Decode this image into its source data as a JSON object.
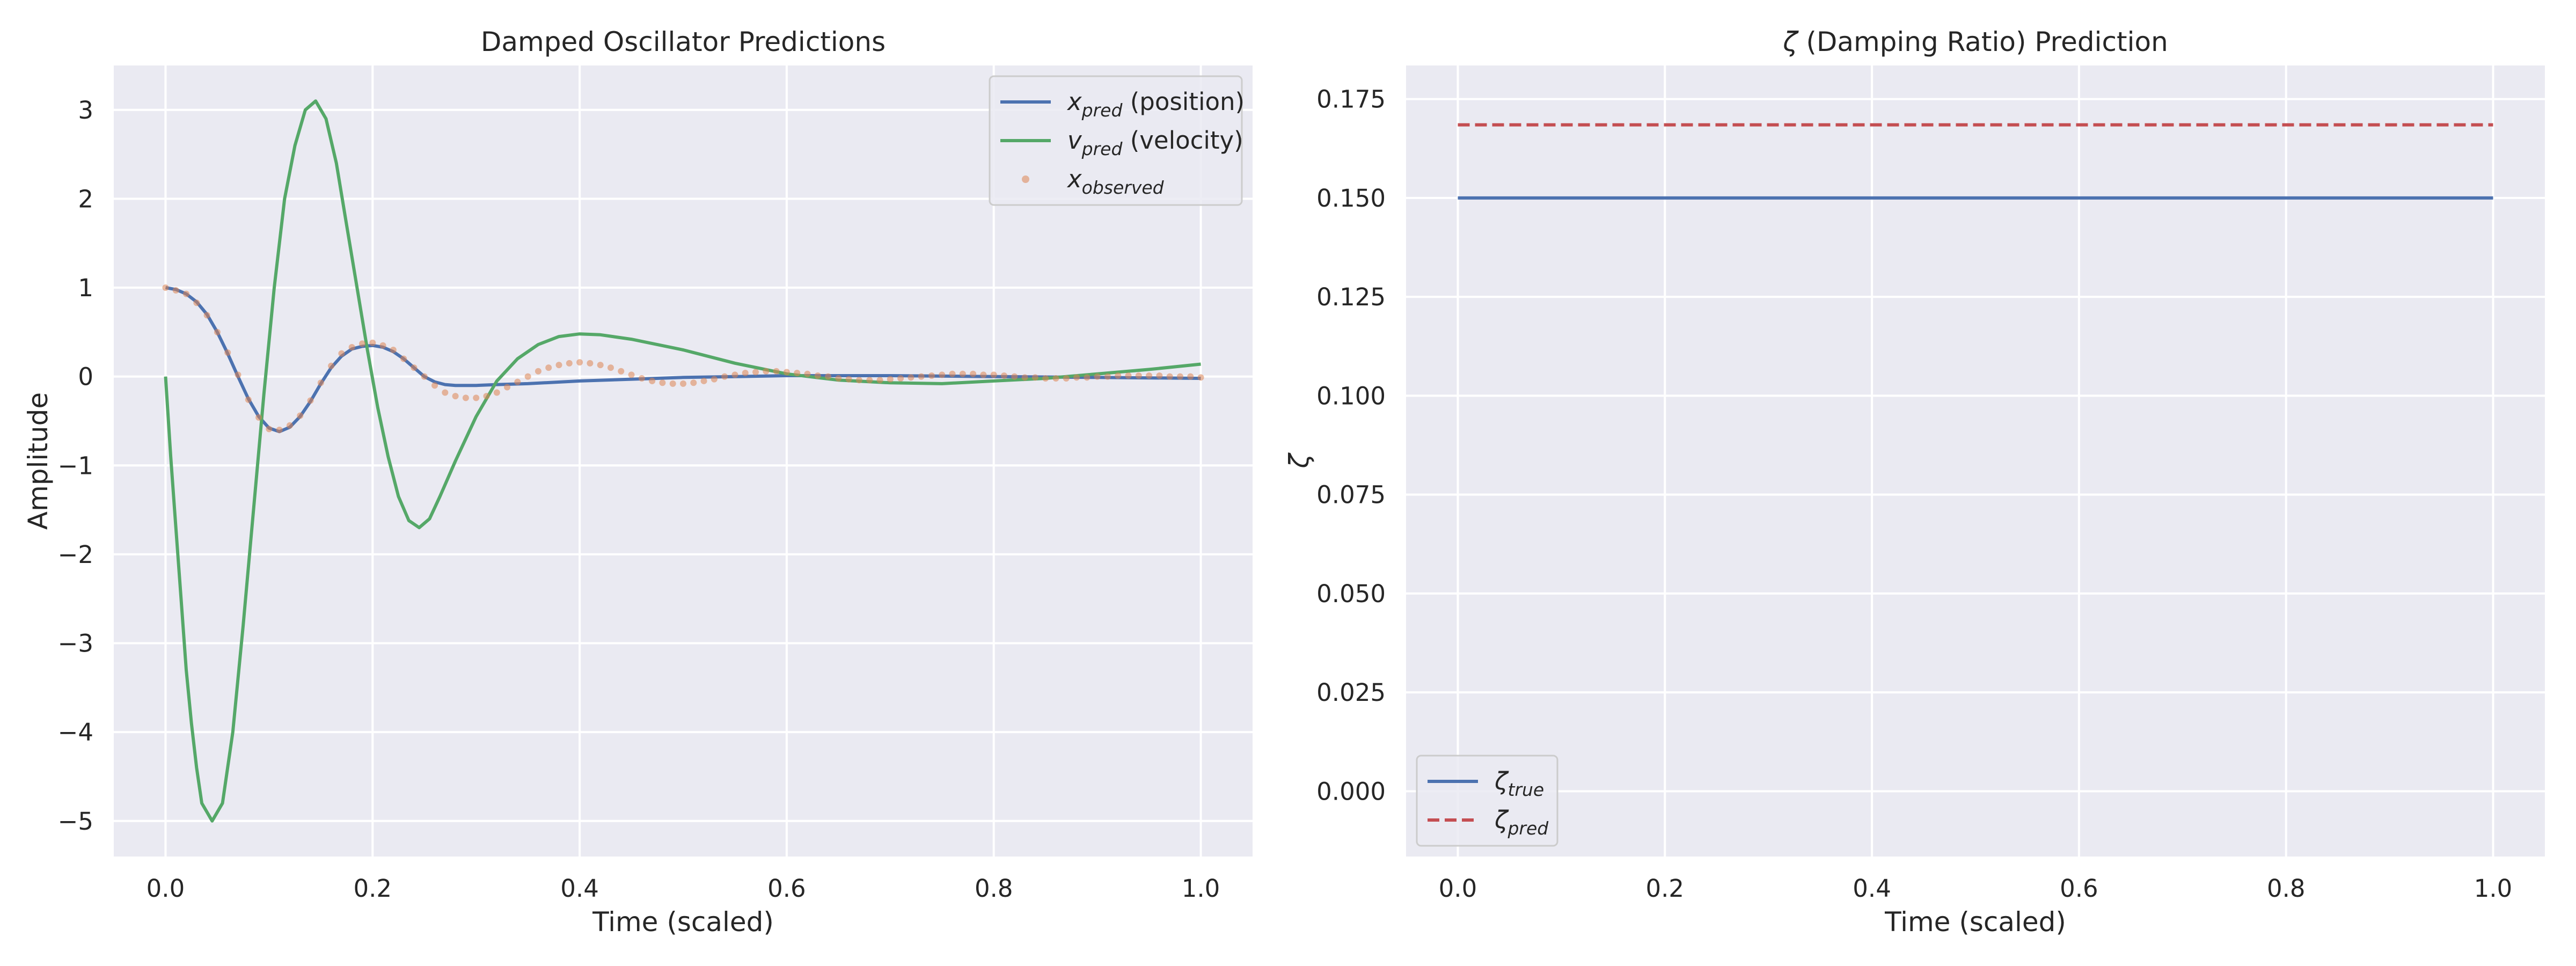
{
  "chart_data": [
    {
      "type": "line",
      "title": "Damped Oscillator Predictions",
      "xlabel": "Time (scaled)",
      "ylabel": "Amplitude",
      "xlim": [
        -0.05,
        1.05
      ],
      "ylim": [
        -5.4,
        3.5
      ],
      "xticks": [
        0.0,
        0.2,
        0.4,
        0.6,
        0.8,
        1.0
      ],
      "xtick_labels": [
        "0.0",
        "0.2",
        "0.4",
        "0.6",
        "0.8",
        "1.0"
      ],
      "yticks": [
        3,
        2,
        1,
        0,
        -1,
        -2,
        -3,
        -4,
        -5
      ],
      "ytick_labels": [
        "3",
        "2",
        "1",
        "0",
        "−1",
        "−2",
        "−3",
        "−4",
        "−5"
      ],
      "grid": true,
      "legend_position": "top-right",
      "series": [
        {
          "name": "x_pred (position)",
          "legend_main": "x",
          "legend_sub": "pred",
          "legend_suffix": " (position)",
          "kind": "line",
          "color": "#4c72b0",
          "points": [
            [
              0.0,
              1.0
            ],
            [
              0.01,
              0.98
            ],
            [
              0.02,
              0.93
            ],
            [
              0.03,
              0.84
            ],
            [
              0.04,
              0.7
            ],
            [
              0.05,
              0.5
            ],
            [
              0.06,
              0.26
            ],
            [
              0.07,
              0.0
            ],
            [
              0.08,
              -0.25
            ],
            [
              0.09,
              -0.45
            ],
            [
              0.1,
              -0.58
            ],
            [
              0.11,
              -0.62
            ],
            [
              0.12,
              -0.57
            ],
            [
              0.13,
              -0.45
            ],
            [
              0.14,
              -0.28
            ],
            [
              0.15,
              -0.08
            ],
            [
              0.16,
              0.1
            ],
            [
              0.17,
              0.23
            ],
            [
              0.18,
              0.31
            ],
            [
              0.19,
              0.34
            ],
            [
              0.2,
              0.35
            ],
            [
              0.21,
              0.33
            ],
            [
              0.22,
              0.28
            ],
            [
              0.23,
              0.2
            ],
            [
              0.24,
              0.1
            ],
            [
              0.25,
              0.0
            ],
            [
              0.26,
              -0.06
            ],
            [
              0.27,
              -0.09
            ],
            [
              0.28,
              -0.1
            ],
            [
              0.3,
              -0.1
            ],
            [
              0.32,
              -0.09
            ],
            [
              0.35,
              -0.08
            ],
            [
              0.4,
              -0.05
            ],
            [
              0.45,
              -0.03
            ],
            [
              0.5,
              -0.01
            ],
            [
              0.55,
              0.0
            ],
            [
              0.6,
              0.01
            ],
            [
              0.65,
              0.01
            ],
            [
              0.7,
              0.01
            ],
            [
              0.8,
              0.0
            ],
            [
              0.9,
              -0.01
            ],
            [
              1.0,
              -0.02
            ]
          ]
        },
        {
          "name": "v_pred (velocity)",
          "legend_main": "v",
          "legend_sub": "pred",
          "legend_suffix": " (velocity)",
          "kind": "line",
          "color": "#55a868",
          "points": [
            [
              0.0,
              0.0
            ],
            [
              0.005,
              -0.9
            ],
            [
              0.01,
              -1.7
            ],
            [
              0.015,
              -2.5
            ],
            [
              0.02,
              -3.3
            ],
            [
              0.025,
              -3.9
            ],
            [
              0.03,
              -4.4
            ],
            [
              0.035,
              -4.8
            ],
            [
              0.045,
              -5.0
            ],
            [
              0.055,
              -4.8
            ],
            [
              0.065,
              -4.0
            ],
            [
              0.075,
              -2.8
            ],
            [
              0.085,
              -1.5
            ],
            [
              0.095,
              -0.2
            ],
            [
              0.105,
              1.0
            ],
            [
              0.115,
              2.0
            ],
            [
              0.125,
              2.6
            ],
            [
              0.135,
              3.0
            ],
            [
              0.145,
              3.1
            ],
            [
              0.155,
              2.9
            ],
            [
              0.165,
              2.4
            ],
            [
              0.175,
              1.7
            ],
            [
              0.185,
              1.0
            ],
            [
              0.195,
              0.3
            ],
            [
              0.205,
              -0.35
            ],
            [
              0.215,
              -0.9
            ],
            [
              0.225,
              -1.35
            ],
            [
              0.235,
              -1.62
            ],
            [
              0.245,
              -1.7
            ],
            [
              0.255,
              -1.6
            ],
            [
              0.265,
              -1.35
            ],
            [
              0.28,
              -0.95
            ],
            [
              0.3,
              -0.45
            ],
            [
              0.32,
              -0.05
            ],
            [
              0.34,
              0.2
            ],
            [
              0.36,
              0.36
            ],
            [
              0.38,
              0.45
            ],
            [
              0.4,
              0.48
            ],
            [
              0.42,
              0.47
            ],
            [
              0.45,
              0.42
            ],
            [
              0.5,
              0.3
            ],
            [
              0.55,
              0.15
            ],
            [
              0.6,
              0.03
            ],
            [
              0.65,
              -0.04
            ],
            [
              0.7,
              -0.07
            ],
            [
              0.75,
              -0.08
            ],
            [
              0.8,
              -0.05
            ],
            [
              0.85,
              -0.02
            ],
            [
              0.9,
              0.03
            ],
            [
              0.95,
              0.08
            ],
            [
              1.0,
              0.14
            ]
          ]
        },
        {
          "name": "x_observed",
          "legend_main": "x",
          "legend_sub": "observed",
          "legend_suffix": "",
          "kind": "scatter",
          "color": "#dd8452",
          "points": [
            [
              0.0,
              1.0
            ],
            [
              0.01,
              0.97
            ],
            [
              0.02,
              0.93
            ],
            [
              0.03,
              0.83
            ],
            [
              0.04,
              0.69
            ],
            [
              0.05,
              0.5
            ],
            [
              0.06,
              0.27
            ],
            [
              0.07,
              0.02
            ],
            [
              0.08,
              -0.26
            ],
            [
              0.09,
              -0.46
            ],
            [
              0.1,
              -0.59
            ],
            [
              0.11,
              -0.6
            ],
            [
              0.12,
              -0.55
            ],
            [
              0.13,
              -0.44
            ],
            [
              0.14,
              -0.27
            ],
            [
              0.15,
              -0.07
            ],
            [
              0.16,
              0.12
            ],
            [
              0.17,
              0.26
            ],
            [
              0.18,
              0.33
            ],
            [
              0.19,
              0.37
            ],
            [
              0.2,
              0.38
            ],
            [
              0.21,
              0.35
            ],
            [
              0.22,
              0.3
            ],
            [
              0.23,
              0.2
            ],
            [
              0.24,
              0.1
            ],
            [
              0.25,
              0.0
            ],
            [
              0.26,
              -0.1
            ],
            [
              0.27,
              -0.18
            ],
            [
              0.28,
              -0.22
            ],
            [
              0.29,
              -0.24
            ],
            [
              0.3,
              -0.24
            ],
            [
              0.31,
              -0.22
            ],
            [
              0.32,
              -0.18
            ],
            [
              0.33,
              -0.12
            ],
            [
              0.34,
              -0.06
            ],
            [
              0.35,
              0.0
            ],
            [
              0.36,
              0.06
            ],
            [
              0.37,
              0.1
            ],
            [
              0.38,
              0.13
            ],
            [
              0.39,
              0.15
            ],
            [
              0.4,
              0.16
            ],
            [
              0.41,
              0.15
            ],
            [
              0.42,
              0.13
            ],
            [
              0.43,
              0.1
            ],
            [
              0.44,
              0.06
            ],
            [
              0.45,
              0.02
            ],
            [
              0.46,
              -0.02
            ],
            [
              0.47,
              -0.05
            ],
            [
              0.48,
              -0.07
            ],
            [
              0.49,
              -0.08
            ],
            [
              0.5,
              -0.08
            ],
            [
              0.51,
              -0.07
            ],
            [
              0.52,
              -0.05
            ],
            [
              0.53,
              -0.03
            ],
            [
              0.54,
              0.0
            ],
            [
              0.55,
              0.02
            ],
            [
              0.56,
              0.04
            ],
            [
              0.57,
              0.05
            ],
            [
              0.58,
              0.06
            ],
            [
              0.59,
              0.06
            ],
            [
              0.6,
              0.05
            ],
            [
              0.61,
              0.04
            ],
            [
              0.62,
              0.03
            ],
            [
              0.63,
              0.01
            ],
            [
              0.64,
              0.0
            ],
            [
              0.65,
              -0.02
            ],
            [
              0.66,
              -0.03
            ],
            [
              0.67,
              -0.04
            ],
            [
              0.68,
              -0.04
            ],
            [
              0.69,
              -0.04
            ],
            [
              0.7,
              -0.03
            ],
            [
              0.71,
              -0.02
            ],
            [
              0.72,
              -0.01
            ],
            [
              0.73,
              0.0
            ],
            [
              0.74,
              0.01
            ],
            [
              0.75,
              0.02
            ],
            [
              0.76,
              0.03
            ],
            [
              0.77,
              0.03
            ],
            [
              0.78,
              0.03
            ],
            [
              0.79,
              0.02
            ],
            [
              0.8,
              0.02
            ],
            [
              0.81,
              0.01
            ],
            [
              0.82,
              0.0
            ],
            [
              0.83,
              -0.01
            ],
            [
              0.84,
              -0.01
            ],
            [
              0.85,
              -0.02
            ],
            [
              0.86,
              -0.02
            ],
            [
              0.87,
              -0.02
            ],
            [
              0.88,
              -0.01
            ],
            [
              0.89,
              -0.01
            ],
            [
              0.9,
              0.0
            ],
            [
              0.91,
              0.0
            ],
            [
              0.92,
              0.01
            ],
            [
              0.93,
              0.01
            ],
            [
              0.94,
              0.01
            ],
            [
              0.95,
              0.01
            ],
            [
              0.96,
              0.01
            ],
            [
              0.97,
              0.0
            ],
            [
              0.98,
              0.0
            ],
            [
              0.99,
              0.0
            ],
            [
              1.0,
              -0.01
            ]
          ]
        }
      ]
    },
    {
      "type": "line",
      "title_symbol": "ζ",
      "title_rest": " (Damping Ratio) Prediction",
      "xlabel": "Time (scaled)",
      "ylabel": "ζ",
      "xlim": [
        -0.05,
        1.05
      ],
      "ylim": [
        -0.0165,
        0.1835
      ],
      "xticks": [
        0.0,
        0.2,
        0.4,
        0.6,
        0.8,
        1.0
      ],
      "xtick_labels": [
        "0.0",
        "0.2",
        "0.4",
        "0.6",
        "0.8",
        "1.0"
      ],
      "yticks": [
        0.175,
        0.15,
        0.125,
        0.1,
        0.075,
        0.05,
        0.025,
        0.0
      ],
      "ytick_labels": [
        "0.175",
        "0.150",
        "0.125",
        "0.100",
        "0.075",
        "0.050",
        "0.025",
        "0.000"
      ],
      "grid": true,
      "legend_position": "bottom-left",
      "series": [
        {
          "name": "ζ_true",
          "legend_main": "ζ",
          "legend_sub": "true",
          "legend_suffix": "",
          "kind": "line",
          "color": "#4c72b0",
          "points": [
            [
              0.0,
              0.15
            ],
            [
              1.0,
              0.15
            ]
          ]
        },
        {
          "name": "ζ_pred",
          "legend_main": "ζ",
          "legend_sub": "pred",
          "legend_suffix": "",
          "kind": "dashed",
          "color": "#c44e52",
          "points": [
            [
              0.0,
              0.1685
            ],
            [
              1.0,
              0.1685
            ]
          ]
        }
      ]
    }
  ]
}
